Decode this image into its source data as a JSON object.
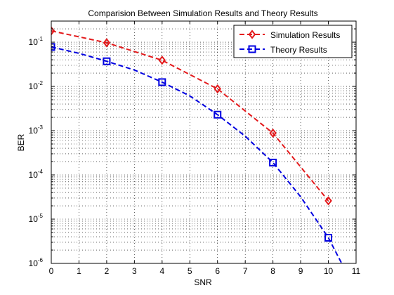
{
  "chart_data": {
    "type": "line",
    "title": "Comparision Between Simulation Results and Theory Results",
    "xlabel": "SNR",
    "ylabel": "BER",
    "xlim": [
      0,
      11
    ],
    "ylim": [
      1e-06,
      0.3
    ],
    "yscale": "log",
    "grid": true,
    "legend_position": "top-right",
    "x_ticks": [
      "0",
      "1",
      "2",
      "3",
      "4",
      "5",
      "6",
      "7",
      "8",
      "9",
      "10",
      "11"
    ],
    "y_ticks": [
      {
        "base": "10",
        "exp": "-6"
      },
      {
        "base": "10",
        "exp": "-5"
      },
      {
        "base": "10",
        "exp": "-4"
      },
      {
        "base": "10",
        "exp": "-3"
      },
      {
        "base": "10",
        "exp": "-2"
      },
      {
        "base": "10",
        "exp": "-1"
      }
    ],
    "series": [
      {
        "name": "Simulation Results",
        "color": "#e31a1c",
        "marker": "diamond",
        "line": "dashed",
        "x": [
          0,
          2,
          4,
          6,
          8,
          10
        ],
        "y": [
          0.18,
          0.097,
          0.039,
          0.0088,
          0.00088,
          2.6e-05
        ]
      },
      {
        "name": "Theory Results",
        "color": "#0000e0",
        "marker": "square",
        "line": "dashed",
        "x": [
          0,
          2,
          4,
          6,
          8,
          10
        ],
        "y": [
          0.078,
          0.037,
          0.0125,
          0.0023,
          0.00019,
          3.8e-06
        ],
        "curve_x": [
          0,
          1,
          2,
          3,
          4,
          5,
          6,
          7,
          8,
          9,
          10,
          10.5
        ],
        "curve_y": [
          0.078,
          0.056,
          0.037,
          0.0235,
          0.0125,
          0.0061,
          0.0023,
          0.00075,
          0.00019,
          3.2e-05,
          3.8e-06,
          9.5e-07
        ]
      }
    ]
  }
}
